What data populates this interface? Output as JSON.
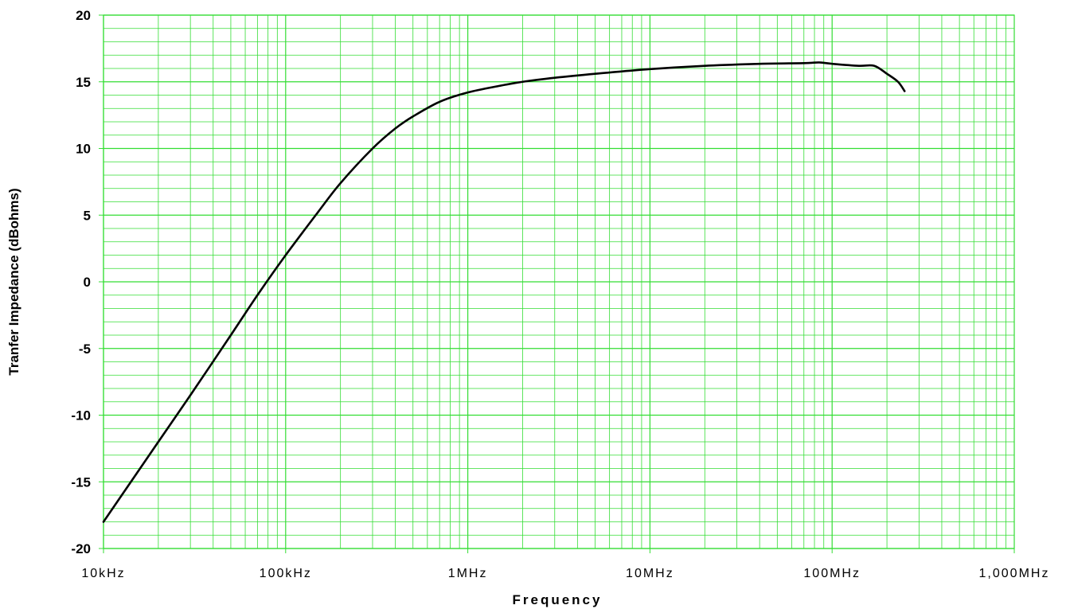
{
  "chart_data": {
    "type": "line",
    "xlabel": "Frequency",
    "ylabel": "Tranfer Impedance (dBohms)",
    "x_scale": "log",
    "xlim_hz": [
      10000,
      1000000000
    ],
    "ylim": [
      -20,
      20
    ],
    "x_ticks": [
      {
        "value": 10000,
        "label": "10kHz"
      },
      {
        "value": 100000,
        "label": "100kHz"
      },
      {
        "value": 1000000,
        "label": "1MHz"
      },
      {
        "value": 10000000,
        "label": "10MHz"
      },
      {
        "value": 100000000,
        "label": "100MHz"
      },
      {
        "value": 1000000000,
        "label": "1,000MHz"
      }
    ],
    "y_ticks": [
      {
        "value": 20,
        "label": "20"
      },
      {
        "value": 15,
        "label": "15"
      },
      {
        "value": 10,
        "label": "10"
      },
      {
        "value": 5,
        "label": "5"
      },
      {
        "value": 0,
        "label": "0"
      },
      {
        "value": -5,
        "label": "-5"
      },
      {
        "value": -10,
        "label": "-10"
      },
      {
        "value": -15,
        "label": "-15"
      },
      {
        "value": -20,
        "label": "-20"
      }
    ],
    "grid": true,
    "grid_color": "#33dd33",
    "line_color": "#000000",
    "series": [
      {
        "x": [
          10000,
          20000,
          30000,
          50000,
          70000,
          100000,
          150000,
          200000,
          300000,
          400000,
          500000,
          700000,
          1000000,
          1500000,
          2000000,
          3000000,
          5000000,
          10000000,
          20000000,
          40000000,
          70000000,
          85000000,
          100000000,
          140000000,
          170000000,
          200000000,
          230000000,
          250000000
        ],
        "y": [
          -18,
          -12,
          -8.5,
          -4,
          -1,
          2,
          5.2,
          7.4,
          10,
          11.5,
          12.4,
          13.5,
          14.2,
          14.7,
          15,
          15.3,
          15.6,
          15.95,
          16.2,
          16.35,
          16.4,
          16.45,
          16.35,
          16.2,
          16.2,
          15.6,
          15,
          14.3
        ]
      }
    ]
  }
}
